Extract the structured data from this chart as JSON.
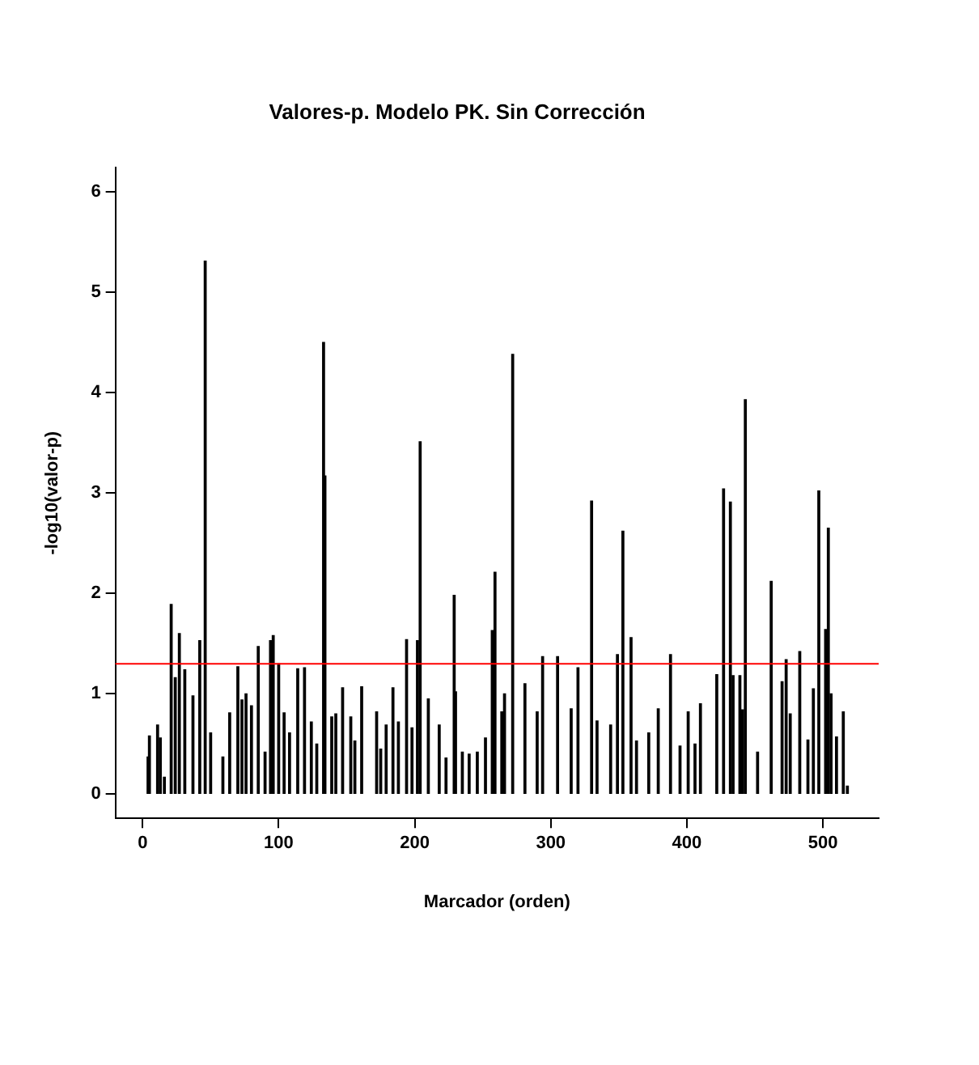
{
  "chart_data": {
    "type": "bar",
    "title": "Valores-p. Modelo PK. Sin Corrección",
    "xlabel": "Marcador (orden)",
    "ylabel": "-log10(valor-p)",
    "x": [
      4,
      5,
      11,
      13,
      16,
      21,
      24,
      27,
      31,
      37,
      42,
      46,
      50,
      59,
      64,
      70,
      73,
      76,
      80,
      85,
      90,
      94,
      96,
      100,
      104,
      108,
      114,
      119,
      124,
      128,
      133,
      134,
      139,
      142,
      147,
      153,
      156,
      161,
      172,
      175,
      179,
      184,
      188,
      194,
      198,
      202,
      204,
      210,
      218,
      223,
      229,
      230,
      235,
      240,
      246,
      252,
      257,
      259,
      264,
      266,
      272,
      281,
      290,
      294,
      305,
      315,
      320,
      330,
      334,
      344,
      349,
      353,
      359,
      363,
      372,
      379,
      388,
      395,
      401,
      406,
      410,
      422,
      427,
      432,
      434,
      439,
      441,
      443,
      452,
      462,
      470,
      473,
      476,
      483,
      489,
      493,
      497,
      502,
      504,
      506,
      510,
      515,
      518
    ],
    "values": [
      0.37,
      0.58,
      0.69,
      0.56,
      0.17,
      1.89,
      1.16,
      1.6,
      1.24,
      0.98,
      1.53,
      5.31,
      0.61,
      0.37,
      0.81,
      1.27,
      0.94,
      1.0,
      0.88,
      1.47,
      0.42,
      1.53,
      1.58,
      1.3,
      0.81,
      0.61,
      1.25,
      1.26,
      0.72,
      0.5,
      4.5,
      3.17,
      0.77,
      0.8,
      1.06,
      0.77,
      0.53,
      1.07,
      0.82,
      0.45,
      0.69,
      1.06,
      0.72,
      1.54,
      0.66,
      1.53,
      3.51,
      0.95,
      0.69,
      0.36,
      1.98,
      1.02,
      0.42,
      0.4,
      0.42,
      0.56,
      1.63,
      2.21,
      0.82,
      1.0,
      4.38,
      1.1,
      0.82,
      1.37,
      1.37,
      0.85,
      1.26,
      2.92,
      0.73,
      0.69,
      1.39,
      2.62,
      1.56,
      0.53,
      0.61,
      0.85,
      1.39,
      0.48,
      0.82,
      0.5,
      0.9,
      1.19,
      3.04,
      2.91,
      1.18,
      1.18,
      0.84,
      3.93,
      0.42,
      2.12,
      1.12,
      1.34,
      0.8,
      1.42,
      0.54,
      1.05,
      3.02,
      1.64,
      2.65,
      1.0,
      0.57,
      0.82,
      0.08
    ],
    "color": "#000000",
    "xlim": [
      -20,
      541
    ],
    "xticks": [
      0,
      100,
      200,
      300,
      400,
      500
    ],
    "ylim": [
      -0.24,
      6.24
    ],
    "yticks": [
      0,
      1,
      2,
      3,
      4,
      5,
      6
    ],
    "ref_lines": [
      {
        "axis": "y",
        "value": 1.3,
        "color": "#ff0000"
      }
    ],
    "grid": false
  }
}
